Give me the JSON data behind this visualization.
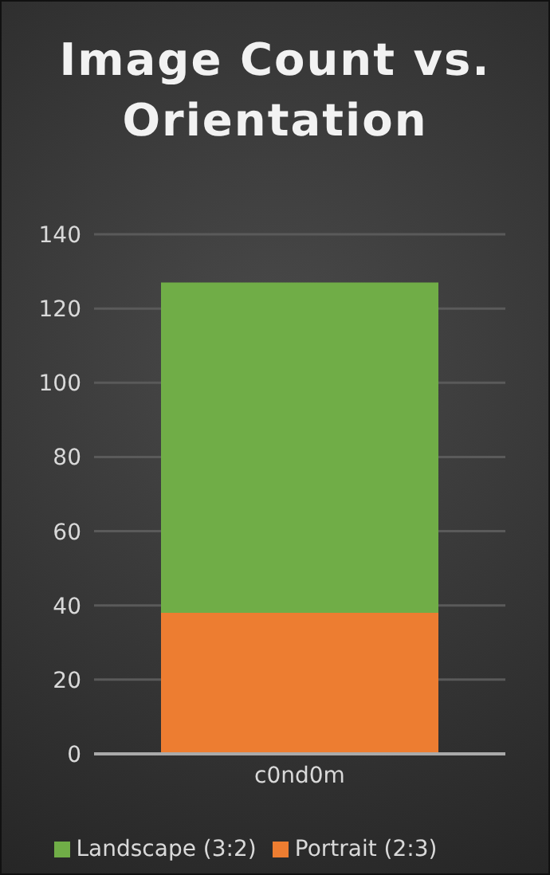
{
  "chart_data": {
    "type": "bar",
    "title": "Image Count vs. Orientation",
    "categories": [
      "c0nd0m"
    ],
    "stacked": true,
    "series": [
      {
        "name": "Portrait (2:3)",
        "color": "#ed7d31",
        "values": [
          38
        ]
      },
      {
        "name": "Landscape (3:2)",
        "color": "#70ad47",
        "values": [
          89
        ]
      }
    ],
    "ylim": [
      0,
      140
    ],
    "yticks": [
      0,
      20,
      40,
      60,
      80,
      100,
      120,
      140
    ],
    "grid": "y",
    "legend": "bottom"
  }
}
